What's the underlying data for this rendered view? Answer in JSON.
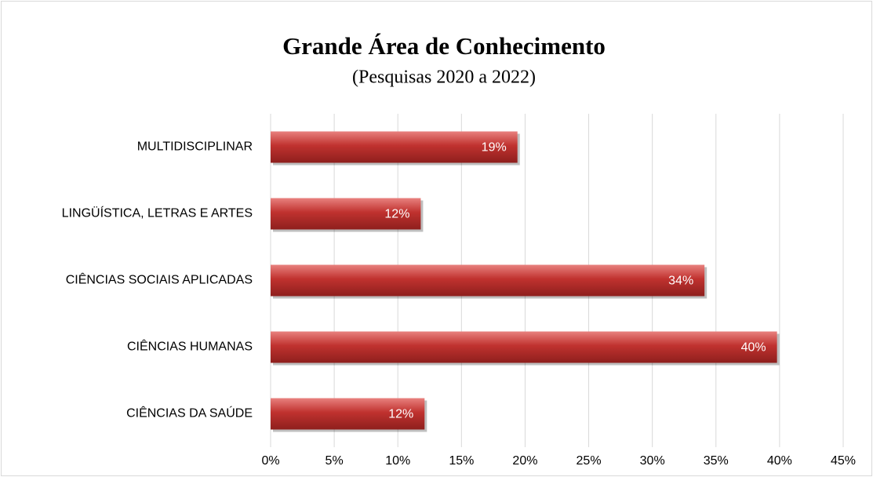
{
  "chart_data": {
    "type": "bar",
    "orientation": "horizontal",
    "title": "Grande Área de Conhecimento",
    "subtitle": "(Pesquisas 2020 a 2022)",
    "categories": [
      "MULTIDISCIPLINAR",
      "LINGÜÍSTICA, LETRAS E ARTES",
      "CIÊNCIAS SOCIAIS APLICADAS",
      "CIÊNCIAS HUMANAS",
      "CIÊNCIAS DA SAÚDE"
    ],
    "values": [
      19.4,
      11.8,
      34.1,
      39.8,
      12.1
    ],
    "value_labels": [
      "19%",
      "12%",
      "34%",
      "40%",
      "12%"
    ],
    "color": "#c0322f",
    "xlim": [
      0,
      45
    ],
    "xticks": [
      {
        "value": 0,
        "label": "0%"
      },
      {
        "value": 5,
        "label": "5%"
      },
      {
        "value": 10,
        "label": "10%"
      },
      {
        "value": 15,
        "label": "15%"
      },
      {
        "value": 20,
        "label": "20%"
      },
      {
        "value": 25,
        "label": "25%"
      },
      {
        "value": 30,
        "label": "30%"
      },
      {
        "value": 35,
        "label": "35%"
      },
      {
        "value": 40,
        "label": "40%"
      },
      {
        "value": 45,
        "label": "45%"
      }
    ],
    "grid": true
  }
}
